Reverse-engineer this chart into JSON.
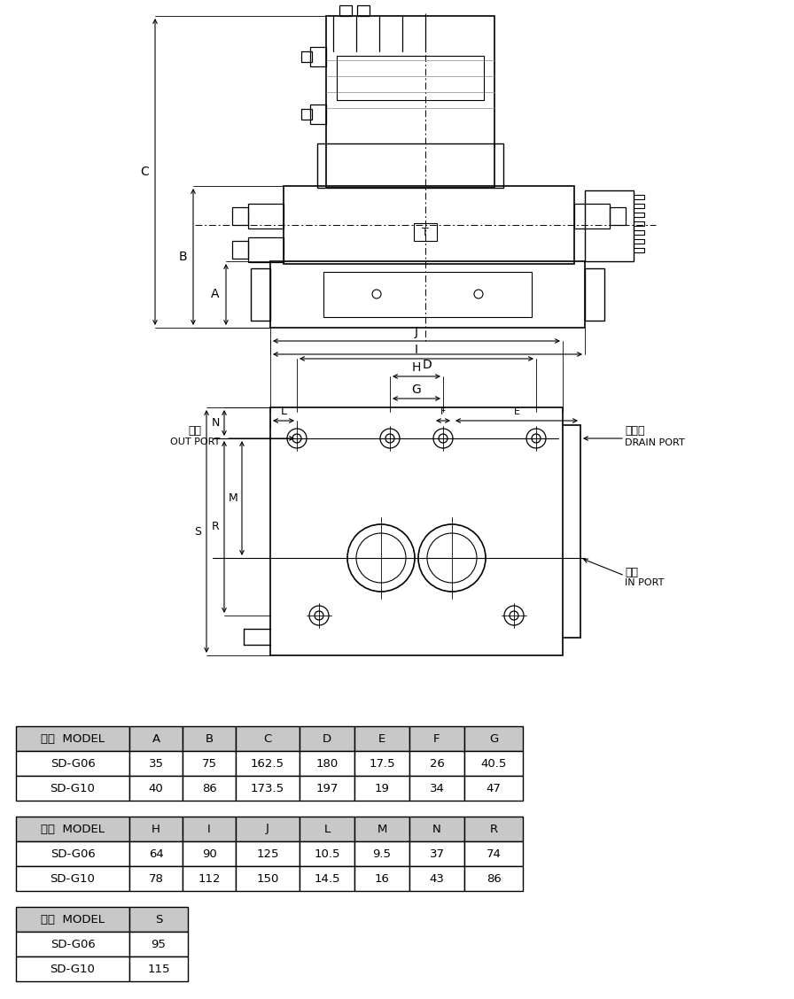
{
  "table1_headers": [
    "型式  MODEL",
    "A",
    "B",
    "C",
    "D",
    "E",
    "F",
    "G"
  ],
  "table1_rows": [
    [
      "SD-G06",
      "35",
      "75",
      "162.5",
      "180",
      "17.5",
      "26",
      "40.5"
    ],
    [
      "SD-G10",
      "40",
      "86",
      "173.5",
      "197",
      "19",
      "34",
      "47"
    ]
  ],
  "table2_headers": [
    "型式  MODEL",
    "H",
    "I",
    "J",
    "L",
    "M",
    "N",
    "R"
  ],
  "table2_rows": [
    [
      "SD-G06",
      "64",
      "90",
      "125",
      "10.5",
      "9.5",
      "37",
      "74"
    ],
    [
      "SD-G10",
      "78",
      "112",
      "150",
      "14.5",
      "16",
      "43",
      "86"
    ]
  ],
  "table3_headers": [
    "型式  MODEL",
    "S"
  ],
  "table3_rows": [
    [
      "SD-G06",
      "95"
    ],
    [
      "SD-G10",
      "115"
    ]
  ],
  "header_bg": "#c8c8c8",
  "cell_bg": "#ffffff",
  "line_color": "#000000"
}
